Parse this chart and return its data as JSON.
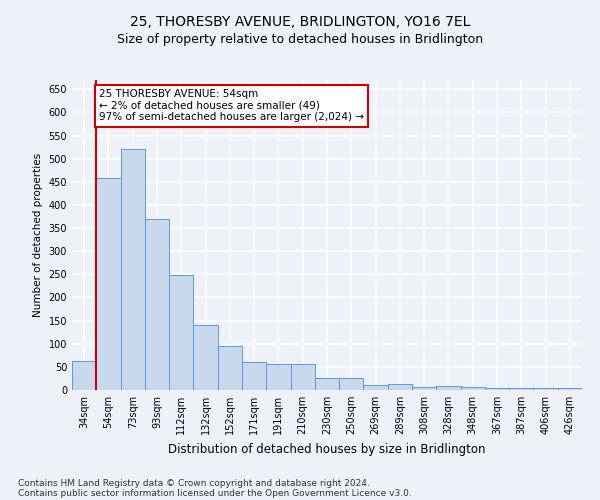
{
  "title": "25, THORESBY AVENUE, BRIDLINGTON, YO16 7EL",
  "subtitle": "Size of property relative to detached houses in Bridlington",
  "xlabel": "Distribution of detached houses by size in Bridlington",
  "ylabel": "Number of detached properties",
  "categories": [
    "34sqm",
    "54sqm",
    "73sqm",
    "93sqm",
    "112sqm",
    "132sqm",
    "152sqm",
    "171sqm",
    "191sqm",
    "210sqm",
    "230sqm",
    "250sqm",
    "269sqm",
    "289sqm",
    "308sqm",
    "328sqm",
    "348sqm",
    "367sqm",
    "387sqm",
    "406sqm",
    "426sqm"
  ],
  "bar_heights": [
    63,
    459,
    521,
    370,
    248,
    140,
    95,
    60,
    56,
    56,
    25,
    25,
    11,
    12,
    6,
    8,
    6,
    5,
    4,
    4,
    4
  ],
  "bar_color": "#c8d9ed",
  "bar_edge_color": "#5b9bd5",
  "ylim": [
    0,
    670
  ],
  "yticks": [
    0,
    50,
    100,
    150,
    200,
    250,
    300,
    350,
    400,
    450,
    500,
    550,
    600,
    650
  ],
  "vline_x": 0.5,
  "vline_color": "#cc0000",
  "annotation_line1": "25 THORESBY AVENUE: 54sqm",
  "annotation_line2": "← 2% of detached houses are smaller (49)",
  "annotation_line3": "97% of semi-detached houses are larger (2,024) →",
  "annotation_box_color": "#ffffff",
  "annotation_box_edge": "#cc0000",
  "footer_line1": "Contains HM Land Registry data © Crown copyright and database right 2024.",
  "footer_line2": "Contains public sector information licensed under the Open Government Licence v3.0.",
  "bg_color": "#eef2f8",
  "plot_bg_color": "#eef2f8",
  "grid_color": "#ffffff",
  "title_fontsize": 10,
  "subtitle_fontsize": 9,
  "xlabel_fontsize": 8.5,
  "ylabel_fontsize": 7.5,
  "tick_fontsize": 7,
  "annotation_fontsize": 7.5,
  "footer_fontsize": 6.5
}
